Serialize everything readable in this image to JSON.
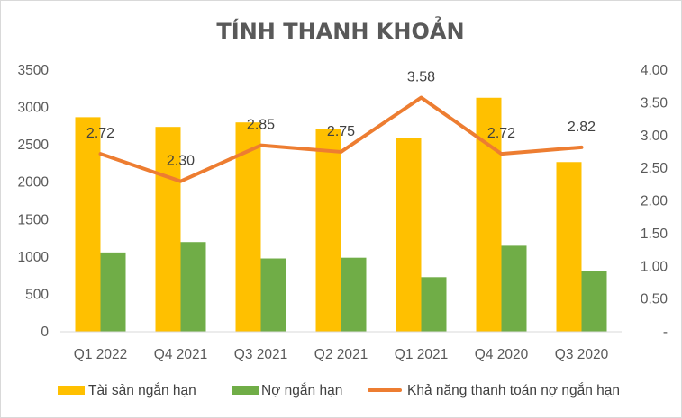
{
  "chart_data": {
    "type": "bar+line",
    "title": "TÍNH THANH KHOẢN",
    "categories": [
      "Q1 2022",
      "Q4 2021",
      "Q3 2021",
      "Q2 2021",
      "Q1 2021",
      "Q4 2020",
      "Q3 2020"
    ],
    "series": [
      {
        "name": "Tài sản ngắn hạn",
        "type": "bar",
        "axis": "left",
        "color": "#FFC000",
        "values": [
          2870,
          2740,
          2800,
          2710,
          2590,
          3130,
          2270
        ]
      },
      {
        "name": "Nợ ngắn hạn",
        "type": "bar",
        "axis": "left",
        "color": "#70AD47",
        "values": [
          1060,
          1200,
          980,
          990,
          730,
          1150,
          810
        ]
      },
      {
        "name": "Khả năng thanh toán nợ ngắn hạn",
        "type": "line",
        "axis": "right",
        "color": "#ED7D31",
        "values": [
          2.72,
          2.3,
          2.85,
          2.75,
          3.58,
          2.72,
          2.82
        ],
        "data_labels": [
          "2.72",
          "2.30",
          "2.85",
          "2.75",
          "3.58",
          "2.72",
          "2.82"
        ]
      }
    ],
    "y_left": {
      "lim": [
        0,
        3500
      ],
      "ticks": [
        0,
        500,
        1000,
        1500,
        2000,
        2500,
        3000,
        3500
      ],
      "tick_labels": [
        "0",
        "500",
        "1000",
        "1500",
        "2000",
        "2500",
        "3000",
        "3500"
      ]
    },
    "y_right": {
      "lim": [
        0,
        4
      ],
      "ticks": [
        0,
        0.5,
        1,
        1.5,
        2,
        2.5,
        3,
        3.5,
        4
      ],
      "tick_labels": [
        "-",
        "0.50",
        "1.00",
        "1.50",
        "2.00",
        "2.50",
        "3.00",
        "3.50",
        "4.00"
      ]
    },
    "grid": false,
    "legend": "bottom"
  }
}
